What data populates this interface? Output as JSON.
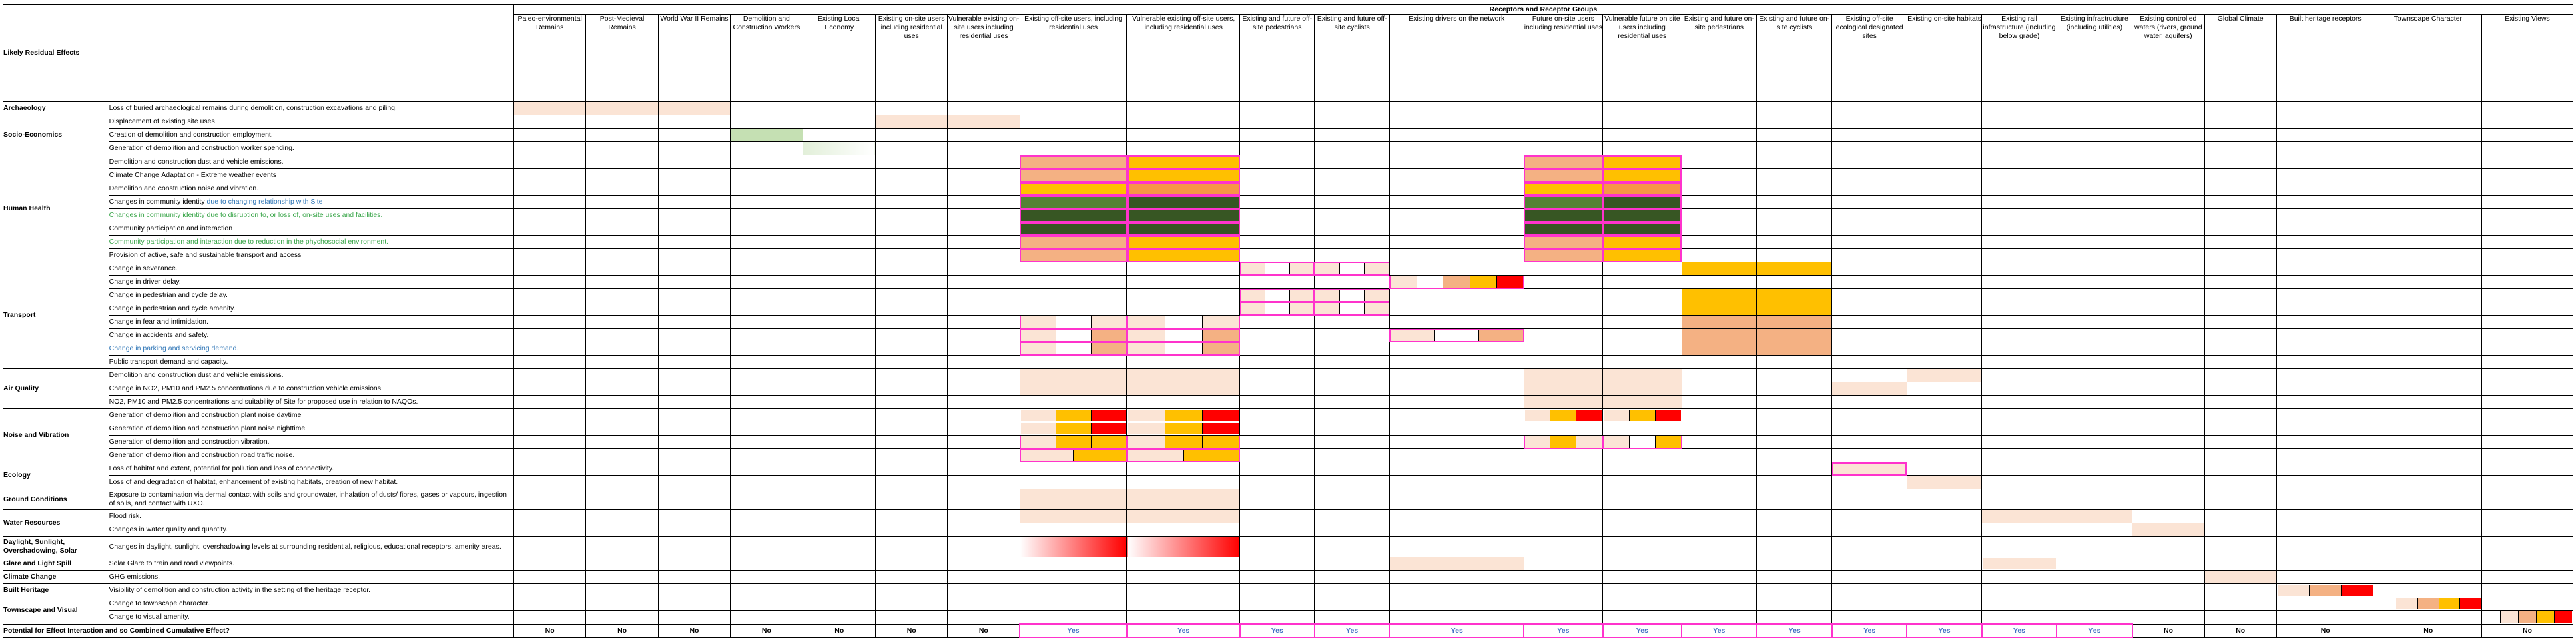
{
  "header": {
    "group_title": "Receptors and Receptor Groups",
    "corner_label": "Likely Residual Effects",
    "summary_label": "Potential for Effect Interaction and so Combined Cumulative Effect?"
  },
  "receptors": [
    "Paleo-environmental Remains",
    "Post-Medieval Remains",
    "World War II Remains",
    "Demolition and Construction Workers",
    "Existing Local Economy",
    "Existing on-site users including residential uses",
    "Vulnerable existing on-site users including residential uses",
    "Existing off-site users, including residential uses",
    "Vulnerable existing off-site users, including residential uses",
    "Existing and future off-site pedestrians",
    "Existing and future off-site cyclists",
    "Existing drivers on the network",
    "Future on-site users including residential uses",
    "Vulnerable future on site users including residential  uses",
    "Existing and future on-site pedestrians",
    "Existing and future on-site cyclists",
    "Existing off-site ecological designated sites",
    "Existing on-site habitats",
    "Existing  rail infrastructure (including below grade)",
    "Existing infrastructure (including utilities)",
    "Existing controlled waters (rivers, ground water, aquifers)",
    "Global Climate",
    "Built heritage receptors",
    "Townscape Character",
    "Existing Views"
  ],
  "groups": [
    {
      "topic": "Archaeology",
      "effects": [
        {
          "text": "Loss of buried archaeological remains during demolition, construction excavations and piling."
        }
      ]
    },
    {
      "topic": "Socio-Economics",
      "effects": [
        {
          "text": "Displacement of existing site uses"
        },
        {
          "text": "Creation of demolition and construction employment."
        },
        {
          "text": "Generation of demolition and construction worker spending."
        }
      ]
    },
    {
      "topic": "Human Health",
      "effects": [
        {
          "text": "Demolition and construction dust and vehicle emissions."
        },
        {
          "text": "Climate Change Adaptation - Extreme weather events"
        },
        {
          "text": "Demolition and construction noise and vibration."
        },
        {
          "text": "Changes in community identity ",
          "suffix": "due to changing relationship with Site"
        },
        {
          "text": "Changes in community identity due to disruption to, or loss of, on-site uses and facilities.",
          "color": "green"
        },
        {
          "text": "Community participation and interaction"
        },
        {
          "text": "Community participation and interaction due to reduction in the phychosocial environment.",
          "color": "green"
        },
        {
          "text": "Provision of active, safe and sustainable transport and access"
        }
      ]
    },
    {
      "topic": "Transport",
      "effects": [
        {
          "text": "Change in severance."
        },
        {
          "text": "Change in driver delay."
        },
        {
          "text": "Change in pedestrian and cycle delay."
        },
        {
          "text": "Change in pedestrian and cycle amenity."
        },
        {
          "text": "Change in fear and intimidation."
        },
        {
          "text": "Change in accidents and safety."
        },
        {
          "text": "Change in parking and servicing demand.",
          "color": "blue"
        },
        {
          "text": "Public transport demand and capacity."
        }
      ]
    },
    {
      "topic": "Air Quality",
      "effects": [
        {
          "text": "Demolition and construction dust and vehicle emissions."
        },
        {
          "text": "Change in NO2, PM10 and PM2.5 concentrations due to construction vehicle emissions."
        },
        {
          "text": "NO2, PM10 and PM2.5 concentrations and suitability of Site for proposed use in relation to NAQOs."
        }
      ]
    },
    {
      "topic": "Noise and Vibration",
      "effects": [
        {
          "text": "Generation of demolition and construction plant noise daytime"
        },
        {
          "text": "Generation of demolition and construction plant noise nighttime"
        },
        {
          "text": "Generation of demolition and construction vibration."
        },
        {
          "text": "Generation of demolition and construction road traffic noise."
        }
      ]
    },
    {
      "topic": "Ecology",
      "effects": [
        {
          "text": "Loss of habitat and extent, potential for pollution and loss of connectivity."
        },
        {
          "text": "Loss of and degradation of habitat, enhancement of existing habitats, creation of new habitat."
        }
      ]
    },
    {
      "topic": "Ground Conditions",
      "effects": [
        {
          "text": "Exposure to contamination via dermal contact with soils and groundwater, inhalation of dusts/ fibres, gases or vapours, ingestion of soils, and contact with UXO.",
          "tall": true
        }
      ]
    },
    {
      "topic": "Water Resources",
      "effects": [
        {
          "text": "Flood risk."
        },
        {
          "text": "Changes in water quality and quantity."
        }
      ]
    },
    {
      "topic": "Daylight, Sunlight, Overshadowing, Solar",
      "effects": [
        {
          "text": "Changes in daylight, sunlight, overshadowing levels at surrounding residential, religious, educational receptors, amenity areas.",
          "tall": true
        }
      ]
    },
    {
      "topic": "Glare and Light Spill",
      "effects": [
        {
          "text": "Solar Glare to train and road viewpoints."
        }
      ]
    },
    {
      "topic": "Climate Change",
      "effects": [
        {
          "text": "GHG emissions."
        }
      ]
    },
    {
      "topic": "Built Heritage",
      "effects": [
        {
          "text": "Visibility of demolition and construction activity in the setting of the heritage receptor."
        }
      ]
    },
    {
      "topic": "Townscape and Visual",
      "effects": [
        {
          "text": "Change to townscape character."
        },
        {
          "text": "Change to visual amenity."
        }
      ]
    }
  ],
  "answers": [
    "No",
    "No",
    "No",
    "No",
    "No",
    "No",
    "No",
    "Yes",
    "Yes",
    "Yes",
    "Yes",
    "Yes",
    "Yes",
    "Yes",
    "Yes",
    "Yes",
    "Yes",
    "Yes",
    "Yes",
    "Yes",
    "No",
    "No",
    "No",
    "No",
    "No"
  ],
  "colors": {
    "light_peach": "#fbe4d5",
    "salmon": "#f4b183",
    "light_green": "#c5e0b3",
    "dark_green": "#375623",
    "mid_green": "#548235",
    "amber": "#ffc000",
    "orange": "#f79646",
    "red": "#ff0000",
    "pink_frame": "#ff33cc",
    "yes_text": "#4472c4"
  }
}
